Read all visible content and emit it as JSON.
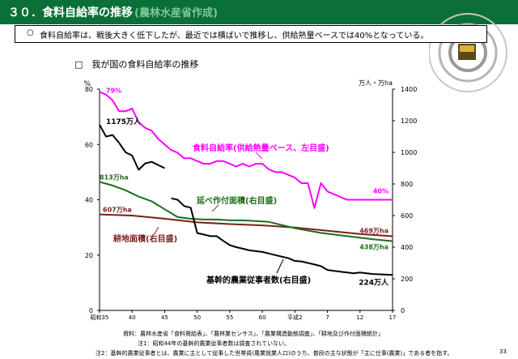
{
  "header": {
    "title": "３０．食料自給率の推移",
    "title_sub": "(農林水産省作成)"
  },
  "summary": {
    "bullet": "○",
    "text": "食料自給率は、戦後大きく低下したが、最近では横ばいで推移し、供給熱量ベースでは40%となっている。"
  },
  "subtitle": "□　我が国の食料自給率の推移",
  "chart_data": {
    "type": "line",
    "x_ticks": [
      "昭和35",
      "40",
      "45",
      "50",
      "55",
      "60",
      "平成2",
      "7",
      "12",
      "17"
    ],
    "x_range": [
      1960,
      2005
    ],
    "y_left": {
      "unit": "%",
      "range": [
        0,
        80
      ],
      "ticks": [
        0,
        20,
        40,
        60,
        80
      ]
    },
    "y_right": {
      "unit": "万人・万ha",
      "range": [
        0,
        1400
      ],
      "ticks": [
        0,
        200,
        400,
        600,
        800,
        1000,
        1200,
        1400
      ]
    },
    "series": [
      {
        "name": "食料自給率(供給熱量ベース、左目盛)",
        "axis": "left",
        "color": "#ff00ff",
        "points": [
          [
            1960,
            79
          ],
          [
            1961,
            78
          ],
          [
            1962,
            76
          ],
          [
            1963,
            72
          ],
          [
            1964,
            72
          ],
          [
            1965,
            73
          ],
          [
            1966,
            68
          ],
          [
            1967,
            66
          ],
          [
            1968,
            65
          ],
          [
            1969,
            62
          ],
          [
            1970,
            60
          ],
          [
            1971,
            58
          ],
          [
            1972,
            57
          ],
          [
            1973,
            55
          ],
          [
            1974,
            55
          ],
          [
            1975,
            54
          ],
          [
            1976,
            53
          ],
          [
            1977,
            53
          ],
          [
            1978,
            54
          ],
          [
            1979,
            54
          ],
          [
            1980,
            53
          ],
          [
            1981,
            52
          ],
          [
            1982,
            53
          ],
          [
            1983,
            52
          ],
          [
            1984,
            53
          ],
          [
            1985,
            53
          ],
          [
            1986,
            51
          ],
          [
            1987,
            50
          ],
          [
            1988,
            50
          ],
          [
            1989,
            49
          ],
          [
            1990,
            48
          ],
          [
            1991,
            46
          ],
          [
            1992,
            46
          ],
          [
            1993,
            37
          ],
          [
            1994,
            46
          ],
          [
            1995,
            43
          ],
          [
            1996,
            42
          ],
          [
            1997,
            41
          ],
          [
            1998,
            40
          ],
          [
            1999,
            40
          ],
          [
            2000,
            40
          ],
          [
            2001,
            40
          ],
          [
            2002,
            40
          ],
          [
            2003,
            40
          ],
          [
            2004,
            40
          ],
          [
            2005,
            40
          ]
        ]
      },
      {
        "name": "延べ作付面積(右目盛)",
        "axis": "right",
        "color": "#1a6e1a",
        "points": [
          [
            1960,
            813
          ],
          [
            1962,
            790
          ],
          [
            1964,
            760
          ],
          [
            1966,
            720
          ],
          [
            1968,
            690
          ],
          [
            1970,
            640
          ],
          [
            1972,
            590
          ],
          [
            1974,
            580
          ],
          [
            1976,
            575
          ],
          [
            1978,
            575
          ],
          [
            1980,
            570
          ],
          [
            1982,
            570
          ],
          [
            1984,
            565
          ],
          [
            1986,
            560
          ],
          [
            1988,
            540
          ],
          [
            1990,
            520
          ],
          [
            1992,
            505
          ],
          [
            1994,
            490
          ],
          [
            1996,
            480
          ],
          [
            1998,
            470
          ],
          [
            2000,
            460
          ],
          [
            2002,
            450
          ],
          [
            2005,
            438
          ]
        ]
      },
      {
        "name": "耕地面積(右目盛)",
        "axis": "right",
        "color": "#7a1f1f",
        "points": [
          [
            1960,
            607
          ],
          [
            1965,
            600
          ],
          [
            1970,
            580
          ],
          [
            1975,
            557
          ],
          [
            1980,
            546
          ],
          [
            1985,
            538
          ],
          [
            1990,
            524
          ],
          [
            1995,
            504
          ],
          [
            2000,
            483
          ],
          [
            2005,
            469
          ]
        ]
      },
      {
        "name": "基幹的農業従事者数(右目盛)",
        "axis": "right",
        "color": "#000000",
        "points": [
          [
            1960,
            1175
          ],
          [
            1961,
            1100
          ],
          [
            1962,
            1110
          ],
          [
            1963,
            1060
          ],
          [
            1964,
            1000
          ],
          [
            1965,
            980
          ],
          [
            1966,
            890
          ],
          [
            1967,
            930
          ],
          [
            1968,
            940
          ],
          [
            1969,
            920
          ],
          [
            1970,
            900
          ]
        ],
        "points_b": [
          [
            1971,
            709
          ],
          [
            1972,
            700
          ],
          [
            1973,
            660
          ],
          [
            1974,
            650
          ],
          [
            1975,
            489
          ],
          [
            1976,
            480
          ],
          [
            1977,
            470
          ],
          [
            1978,
            470
          ],
          [
            1979,
            440
          ],
          [
            1980,
            413
          ],
          [
            1981,
            400
          ],
          [
            1982,
            390
          ],
          [
            1983,
            380
          ],
          [
            1984,
            375
          ],
          [
            1985,
            370
          ],
          [
            1986,
            360
          ],
          [
            1987,
            350
          ],
          [
            1988,
            340
          ],
          [
            1989,
            330
          ],
          [
            1990,
            313
          ],
          [
            1991,
            310
          ],
          [
            1992,
            300
          ],
          [
            1993,
            290
          ],
          [
            1994,
            280
          ],
          [
            1995,
            256
          ],
          [
            1996,
            250
          ],
          [
            1997,
            245
          ],
          [
            1998,
            240
          ],
          [
            1999,
            235
          ],
          [
            2000,
            240
          ],
          [
            2001,
            235
          ],
          [
            2002,
            230
          ],
          [
            2003,
            228
          ],
          [
            2004,
            226
          ],
          [
            2005,
            224
          ]
        ]
      }
    ],
    "annotations": {
      "start_ratio": "79%",
      "end_ratio": "40%",
      "workers_start": "1175万人",
      "workers_end": "224万人",
      "cropped_start": "813万ha",
      "cropped_end": "438万ha",
      "arable_start": "607万ha",
      "arable_end": "469万ha"
    }
  },
  "footnotes": {
    "source": "資料：農林水産省「食料需給表」、「農林業センサス」、「農業構造動態調査」、「耕地及び作付面積統計」",
    "note1": "注1：昭和44年の基幹的農業従事者数は調査されていない。",
    "note2": "注2：基幹的農業従事者とは、農業に主として従事した世帯員(農業就業人口)のうち、普段の主な状態が「主に仕事(農業)」である者を指す。"
  },
  "page_number": "33",
  "colors": {
    "header_bg": "#0a6f38",
    "ratio": "#ff00ff",
    "cropped": "#1a6e1a",
    "arable": "#7a1f1f",
    "workers": "#000000"
  }
}
